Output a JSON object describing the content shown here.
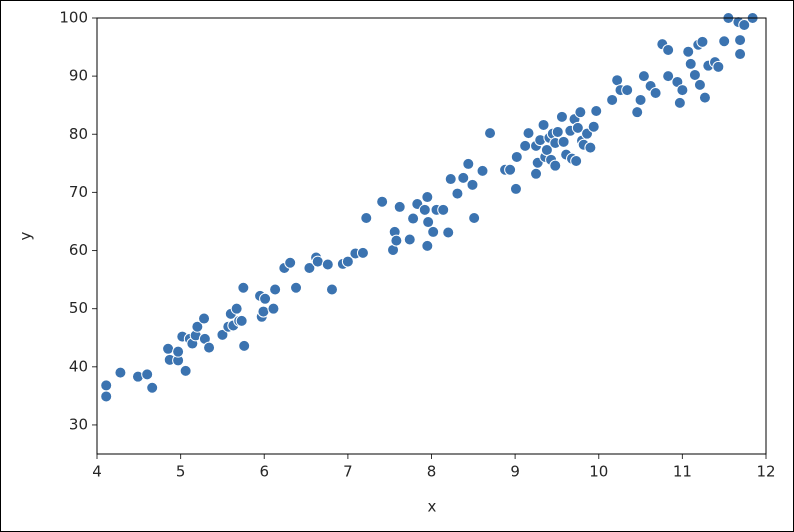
{
  "chart_data": {
    "type": "scatter",
    "x_label": "x",
    "y_label": "y",
    "color": "#3b73b0",
    "xlim": [
      4,
      12
    ],
    "xticks": [
      4,
      5,
      6,
      7,
      8,
      9,
      10,
      11,
      12
    ],
    "ylim": [
      25,
      100
    ],
    "yticks": [
      30,
      40,
      50,
      60,
      70,
      80,
      90,
      100
    ],
    "x": [
      4.11,
      4.11,
      4.28,
      4.49,
      4.6,
      4.66,
      4.85,
      4.87,
      4.97,
      4.97,
      5.02,
      5.06,
      5.11,
      5.14,
      5.18,
      5.2,
      5.28,
      5.29,
      5.34,
      5.5,
      5.57,
      5.6,
      5.63,
      5.67,
      5.7,
      5.73,
      5.75,
      5.76,
      5.95,
      5.97,
      5.99,
      6.01,
      6.11,
      6.13,
      6.24,
      6.31,
      6.38,
      6.54,
      6.62,
      6.64,
      6.76,
      6.81,
      6.94,
      7.0,
      7.09,
      7.18,
      7.22,
      7.41,
      7.54,
      7.56,
      7.58,
      7.62,
      7.74,
      7.78,
      7.83,
      7.92,
      7.95,
      7.95,
      7.96,
      8.02,
      8.06,
      8.14,
      8.2,
      8.23,
      8.31,
      8.38,
      8.44,
      8.49,
      8.51,
      8.61,
      8.7,
      8.88,
      8.94,
      9.01,
      9.02,
      9.12,
      9.16,
      9.25,
      9.25,
      9.27,
      9.3,
      9.34,
      9.36,
      9.38,
      9.41,
      9.43,
      9.45,
      9.48,
      9.48,
      9.51,
      9.56,
      9.58,
      9.61,
      9.66,
      9.68,
      9.71,
      9.73,
      9.75,
      9.78,
      9.8,
      9.82,
      9.86,
      9.9,
      9.94,
      9.97,
      10.16,
      10.22,
      10.26,
      10.34,
      10.46,
      10.5,
      10.54,
      10.62,
      10.68,
      10.76,
      10.83,
      10.83,
      10.94,
      10.97,
      11.0,
      11.07,
      11.1,
      11.15,
      11.19,
      11.21,
      11.24,
      11.27,
      11.31,
      11.39,
      11.43,
      11.5,
      11.55,
      11.67,
      11.69,
      11.69,
      11.74,
      11.84
    ],
    "values": [
      36.8,
      34.9,
      39.0,
      38.3,
      38.7,
      36.4,
      43.1,
      41.2,
      41.1,
      42.6,
      45.2,
      39.3,
      44.8,
      44.0,
      45.4,
      46.9,
      48.3,
      44.8,
      43.3,
      45.5,
      46.9,
      49.1,
      47.1,
      50.0,
      47.9,
      47.9,
      53.6,
      43.6,
      52.2,
      48.6,
      49.5,
      51.7,
      50.0,
      53.3,
      57.0,
      57.9,
      53.6,
      57.0,
      58.8,
      58.1,
      57.6,
      53.3,
      57.7,
      58.1,
      59.5,
      59.6,
      65.6,
      68.4,
      60.1,
      63.2,
      61.7,
      67.5,
      61.9,
      65.5,
      68.0,
      67.0,
      60.8,
      69.2,
      64.9,
      63.2,
      67.0,
      67.0,
      63.1,
      72.3,
      69.8,
      72.5,
      74.9,
      71.3,
      65.6,
      73.7,
      80.2,
      73.9,
      73.9,
      70.6,
      76.1,
      78.0,
      80.2,
      78.0,
      73.2,
      75.1,
      79.0,
      81.6,
      76.1,
      77.3,
      79.4,
      75.6,
      80.1,
      78.5,
      74.6,
      80.4,
      83.0,
      78.7,
      76.5,
      80.6,
      75.8,
      82.6,
      75.4,
      81.1,
      83.8,
      78.9,
      78.2,
      80.1,
      77.7,
      81.3,
      84.0,
      85.9,
      89.3,
      87.6,
      87.6,
      83.8,
      85.9,
      90.0,
      88.3,
      87.1,
      95.5,
      90.0,
      94.5,
      89.0,
      85.4,
      87.6,
      94.2,
      92.1,
      90.2,
      95.4,
      88.5,
      95.9,
      86.3,
      91.8,
      92.4,
      91.6,
      96.0,
      100.0,
      99.3,
      93.8,
      96.2,
      98.8,
      100.0
    ]
  }
}
